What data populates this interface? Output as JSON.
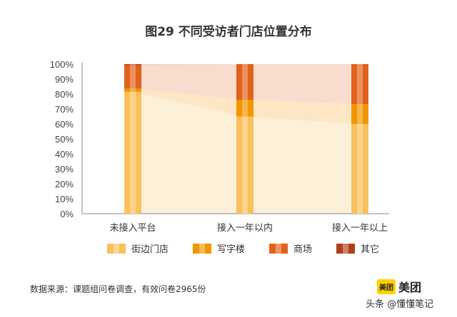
{
  "title": "图29  不同受访者门店位置分布",
  "chart_data": {
    "type": "bar",
    "stacked": true,
    "title": "图29  不同受访者门店位置分布",
    "categories": [
      "未接入平台",
      "接入一年以内",
      "接入一年以上"
    ],
    "yticks": [
      "0%",
      "10%",
      "20%",
      "30%",
      "40%",
      "50%",
      "60%",
      "70%",
      "80%",
      "90%",
      "100%"
    ],
    "ylim": [
      0,
      100
    ],
    "legend_position": "bottom",
    "series": [
      {
        "name": "街边门店",
        "color": "#f9c15c",
        "values": [
          81.4,
          64.9,
          60.0
        ]
      },
      {
        "name": "写字楼",
        "color": "#f29600",
        "values": [
          2.3,
          11.3,
          13.3
        ]
      },
      {
        "name": "商场",
        "color": "#e2621b",
        "values": [
          15.5,
          23.8,
          26.7
        ]
      },
      {
        "name": "其它",
        "color": "#b0401a",
        "values": [
          0.8,
          0,
          0
        ]
      }
    ],
    "band_colors": [
      "#fdf0d9",
      "#fce6c4",
      "#f8dccd",
      "#f3cfc0"
    ]
  },
  "source": "数据来源：课题组问卷调查，有效问卷2965份",
  "logo": {
    "box": "美团",
    "text": "美团"
  },
  "watermark": "头条 @懂懂笔记"
}
